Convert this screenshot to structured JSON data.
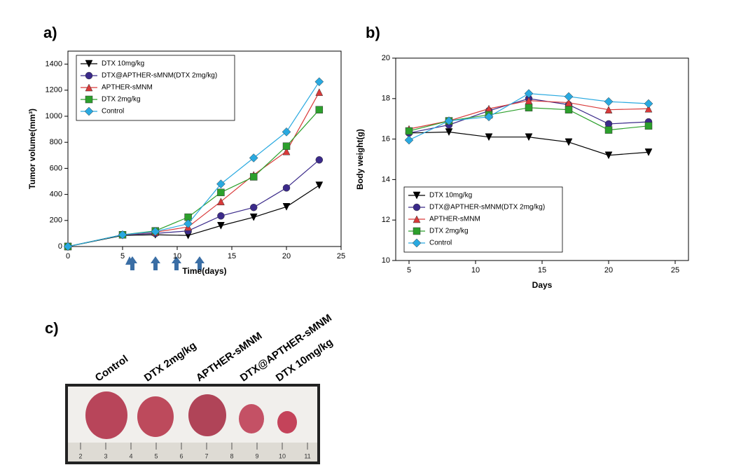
{
  "chart_data": [
    {
      "type": "line",
      "label": "a)",
      "x_label": "Time(days)",
      "y_label": "Tumor volume(mm³)",
      "x": [
        0,
        5,
        8,
        11,
        14,
        17,
        20,
        23
      ],
      "xlim": [
        0,
        25
      ],
      "xticks": [
        0,
        5,
        10,
        15,
        20,
        25
      ],
      "ylim": [
        0,
        1500
      ],
      "yticks": [
        0,
        200,
        400,
        600,
        800,
        1000,
        1200,
        1400
      ],
      "legend": "upper left",
      "series": [
        {
          "name": "DTX 10mg/kg",
          "color": "#000000",
          "marker": "triangle-down",
          "values": [
            0,
            85,
            90,
            85,
            160,
            225,
            305,
            470
          ]
        },
        {
          "name": "DTX@APTHER-sMNM(DTX 2mg/kg)",
          "color": "#3b2a8a",
          "marker": "circle",
          "values": [
            0,
            90,
            100,
            120,
            235,
            300,
            450,
            665
          ]
        },
        {
          "name": "APTHER-sMNM",
          "color": "#d93a3a",
          "marker": "triangle-up",
          "values": [
            0,
            90,
            110,
            150,
            345,
            550,
            730,
            1185
          ]
        },
        {
          "name": "DTX 2mg/kg",
          "color": "#2ca02c",
          "marker": "square",
          "values": [
            0,
            90,
            120,
            225,
            415,
            535,
            770,
            1050
          ]
        },
        {
          "name": "Control",
          "color": "#29a9e0",
          "marker": "diamond",
          "values": [
            0,
            90,
            115,
            175,
            480,
            680,
            880,
            1265
          ]
        }
      ]
    },
    {
      "type": "line",
      "label": "b)",
      "x_label": "Days",
      "y_label": "Body weight(g)",
      "x": [
        5,
        8,
        11,
        14,
        17,
        20,
        23
      ],
      "xlim": [
        4,
        26
      ],
      "xticks": [
        5,
        10,
        15,
        20,
        25
      ],
      "ylim": [
        10,
        20
      ],
      "yticks": [
        10,
        12,
        14,
        16,
        18,
        20
      ],
      "legend": "lower left",
      "series": [
        {
          "name": "DTX 10mg/kg",
          "color": "#000000",
          "marker": "triangle-down",
          "values": [
            16.3,
            16.35,
            16.1,
            16.1,
            15.85,
            15.2,
            15.35
          ]
        },
        {
          "name": "DTX@APTHER-sMNM(DTX 2mg/kg)",
          "color": "#3b2a8a",
          "marker": "circle",
          "values": [
            16.3,
            16.7,
            17.4,
            18.0,
            17.7,
            16.75,
            16.85
          ]
        },
        {
          "name": "APTHER-sMNM",
          "color": "#d93a3a",
          "marker": "triangle-up",
          "values": [
            16.5,
            16.9,
            17.5,
            17.9,
            17.8,
            17.45,
            17.5
          ]
        },
        {
          "name": "DTX 2mg/kg",
          "color": "#2ca02c",
          "marker": "square",
          "values": [
            16.4,
            16.9,
            17.2,
            17.55,
            17.45,
            16.45,
            16.65
          ]
        },
        {
          "name": "Control",
          "color": "#29a9e0",
          "marker": "diamond",
          "values": [
            15.95,
            16.9,
            17.1,
            18.25,
            18.1,
            17.85,
            17.75
          ]
        }
      ]
    }
  ],
  "panel_c": {
    "label": "c)",
    "samples": [
      "Control",
      "DTX 2mg/kg",
      "APTHER-sMNM",
      "DTX@APTHER-sMNM",
      "DTX 10mg/kg"
    ],
    "ruler_labels": [
      "2",
      "3",
      "4",
      "5",
      "6",
      "7",
      "8",
      "9",
      "10",
      "11"
    ]
  }
}
